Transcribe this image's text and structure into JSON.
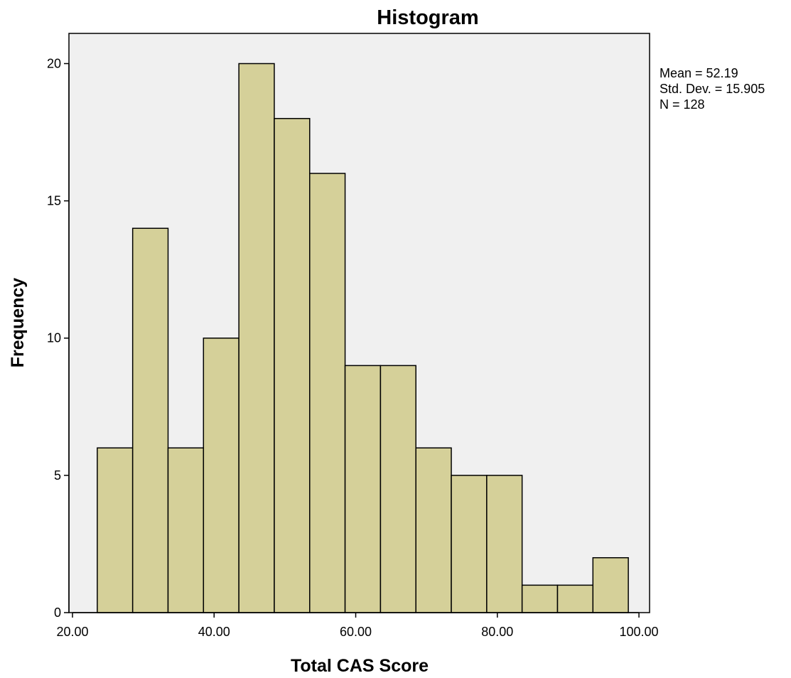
{
  "chart_data": {
    "type": "bar",
    "title": "Histogram",
    "xlabel": "Total CAS Score",
    "ylabel": "Frequency",
    "xlim": [
      19.5,
      101.5
    ],
    "ylim": [
      0,
      21.1
    ],
    "x_ticks": [
      {
        "value": 20,
        "label": "20.00"
      },
      {
        "value": 40,
        "label": "40.00"
      },
      {
        "value": 60,
        "label": "60.00"
      },
      {
        "value": 80,
        "label": "80.00"
      },
      {
        "value": 100,
        "label": "100.00"
      }
    ],
    "y_ticks": [
      {
        "value": 0,
        "label": "0"
      },
      {
        "value": 5,
        "label": "5"
      },
      {
        "value": 10,
        "label": "10"
      },
      {
        "value": 15,
        "label": "15"
      },
      {
        "value": 20,
        "label": "20"
      }
    ],
    "bins": [
      {
        "start": 23.5,
        "end": 28.5,
        "count": 6
      },
      {
        "start": 28.5,
        "end": 33.5,
        "count": 14
      },
      {
        "start": 33.5,
        "end": 38.5,
        "count": 6
      },
      {
        "start": 38.5,
        "end": 43.5,
        "count": 10
      },
      {
        "start": 43.5,
        "end": 48.5,
        "count": 20
      },
      {
        "start": 48.5,
        "end": 53.5,
        "count": 18
      },
      {
        "start": 53.5,
        "end": 58.5,
        "count": 16
      },
      {
        "start": 58.5,
        "end": 63.5,
        "count": 9
      },
      {
        "start": 63.5,
        "end": 68.5,
        "count": 9
      },
      {
        "start": 68.5,
        "end": 73.5,
        "count": 6
      },
      {
        "start": 73.5,
        "end": 78.5,
        "count": 5
      },
      {
        "start": 78.5,
        "end": 83.5,
        "count": 5
      },
      {
        "start": 83.5,
        "end": 88.5,
        "count": 1
      },
      {
        "start": 88.5,
        "end": 93.5,
        "count": 1
      },
      {
        "start": 93.5,
        "end": 98.5,
        "count": 2
      }
    ],
    "stats": [
      "Mean = 52.19",
      "Std. Dev. = 15.905",
      "N = 128"
    ],
    "grid": false,
    "legend": "none",
    "colors": {
      "bar_fill": "#d5d099",
      "bar_stroke": "#000000",
      "plot_background": "#f0f0f0",
      "frame": "#000000"
    }
  }
}
